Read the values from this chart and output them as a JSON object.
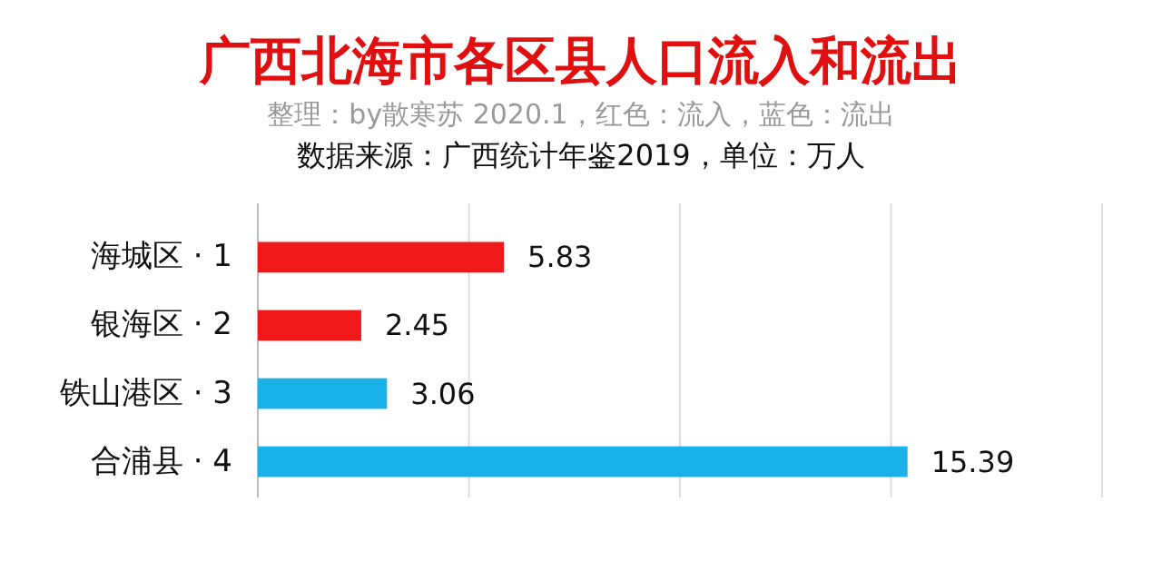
{
  "chart_data": {
    "type": "bar",
    "orientation": "horizontal",
    "title": "广西北海市各区县人口流入和流出",
    "subtitle": "整理：by散寒苏 2020.1，红色：流入，蓝色：流出",
    "annotations": [
      "数据来源：广西统计年鉴2019，单位：万人"
    ],
    "categories": [
      "海城区 · 1",
      "银海区 · 2",
      "铁山港区 · 3",
      "合浦县 · 4"
    ],
    "values": [
      5.83,
      2.45,
      3.06,
      15.39
    ],
    "colors": [
      "#f01818",
      "#f01818",
      "#1ab0e8",
      "#1ab0e8"
    ],
    "xlim": [
      0,
      20
    ],
    "xticks": [
      {
        "value": 0,
        "label": null
      },
      {
        "value": 5,
        "label": null
      },
      {
        "value": 10,
        "label": null
      },
      {
        "value": 15,
        "label": null
      },
      {
        "value": 20,
        "label": null
      }
    ],
    "grid": "x",
    "tick_labels": "y",
    "data_labels": true
  }
}
